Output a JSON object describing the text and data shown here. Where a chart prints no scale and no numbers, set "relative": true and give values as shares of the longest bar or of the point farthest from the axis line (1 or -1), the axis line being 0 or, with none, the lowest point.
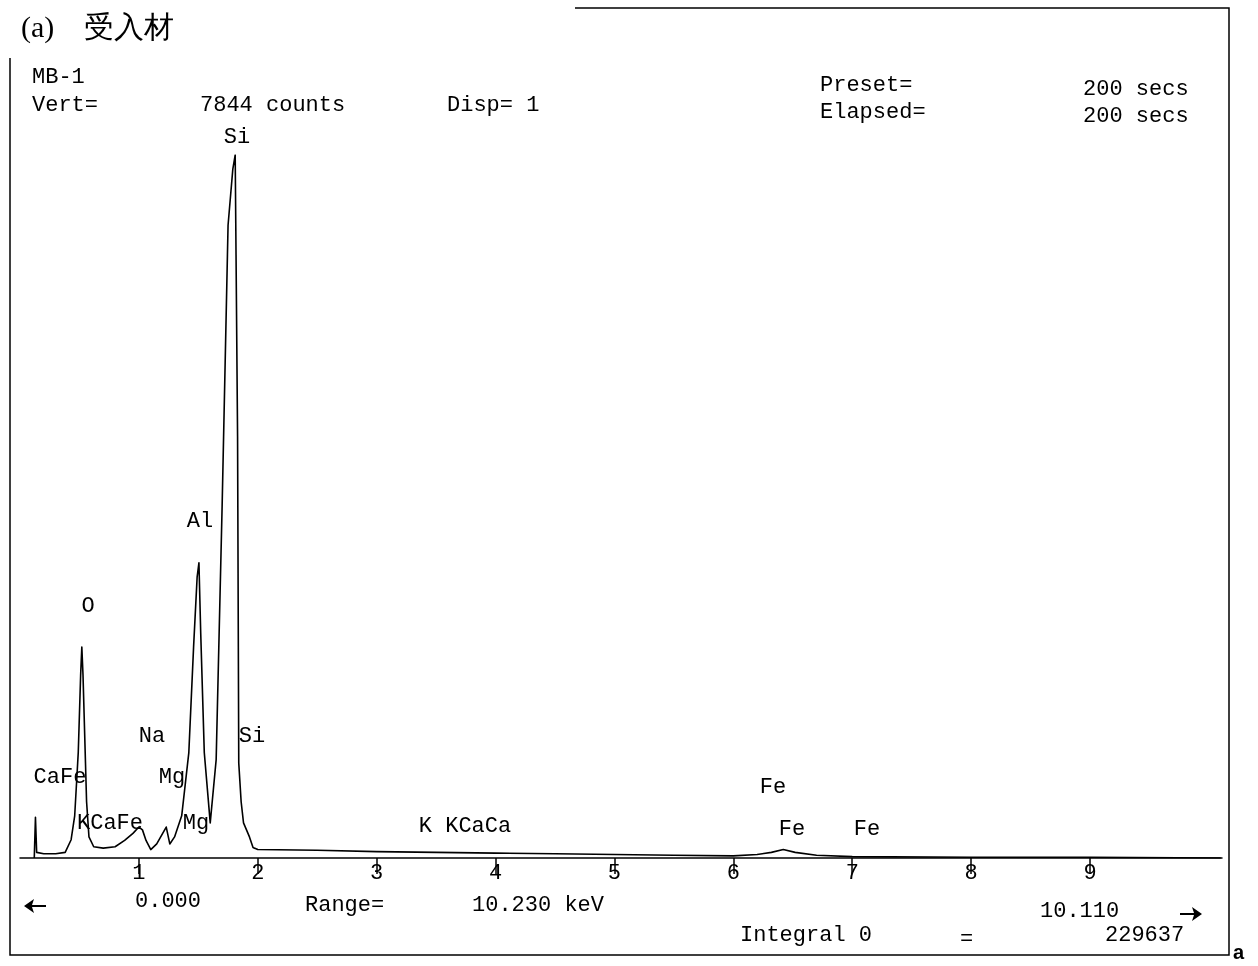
{
  "chart_data": {
    "type": "line",
    "title": "(a)　受入材",
    "relative": true,
    "marker": "none",
    "line_style": "solid",
    "grid": false,
    "xlim": [
      0,
      10.11
    ],
    "xticks": [
      1,
      2,
      3,
      4,
      5,
      6,
      7,
      8,
      9
    ],
    "series": [
      {
        "color": "#000000",
        "x": [
          0.12,
          0.13,
          0.14,
          0.2,
          0.3,
          0.38,
          0.43,
          0.46,
          0.49,
          0.51,
          0.52,
          0.53,
          0.54,
          0.56,
          0.58,
          0.62,
          0.7,
          0.8,
          0.88,
          0.95,
          1.0,
          1.03,
          1.06,
          1.1,
          1.15,
          1.2,
          1.23,
          1.26,
          1.3,
          1.36,
          1.42,
          1.46,
          1.49,
          1.505,
          1.52,
          1.55,
          1.6,
          1.65,
          1.7,
          1.75,
          1.79,
          1.81,
          1.83,
          1.84,
          1.86,
          1.88,
          1.93,
          1.96,
          2.0,
          2.5,
          3.0,
          3.5,
          4.0,
          4.5,
          5.0,
          5.5,
          6.0,
          6.2,
          6.32,
          6.42,
          6.52,
          6.7,
          7.0,
          8.0,
          9.0,
          10.1
        ],
        "values": [
          0,
          0.058,
          0.008,
          0.006,
          0.006,
          0.008,
          0.026,
          0.06,
          0.15,
          0.26,
          0.3,
          0.26,
          0.2,
          0.08,
          0.03,
          0.016,
          0.014,
          0.016,
          0.025,
          0.035,
          0.044,
          0.04,
          0.025,
          0.012,
          0.02,
          0.035,
          0.044,
          0.02,
          0.03,
          0.06,
          0.15,
          0.3,
          0.4,
          0.42,
          0.32,
          0.15,
          0.05,
          0.14,
          0.5,
          0.9,
          0.98,
          1.0,
          0.6,
          0.135,
          0.08,
          0.05,
          0.03,
          0.015,
          0.012,
          0.011,
          0.009,
          0.008,
          0.007,
          0.006,
          0.005,
          0.004,
          0.003,
          0.005,
          0.008,
          0.012,
          0.008,
          0.004,
          0.002,
          0.001,
          0.001,
          0
        ]
      }
    ],
    "annotations": [
      "MB-1",
      "Vert=",
      "7844 counts",
      "Disp= 1",
      "Preset=",
      "200 secs",
      "Elapsed=",
      "200 secs",
      "0.000",
      "Range=",
      "10.230 keV",
      "10.110",
      "Integral 0",
      "=",
      "229637",
      "a",
      "Si",
      "Al",
      "O",
      "Na",
      "Si",
      "CaFe",
      "Mg",
      "KCaFe",
      "Mg",
      "K KCaCa",
      "Fe",
      "Fe",
      "Fe"
    ]
  }
}
